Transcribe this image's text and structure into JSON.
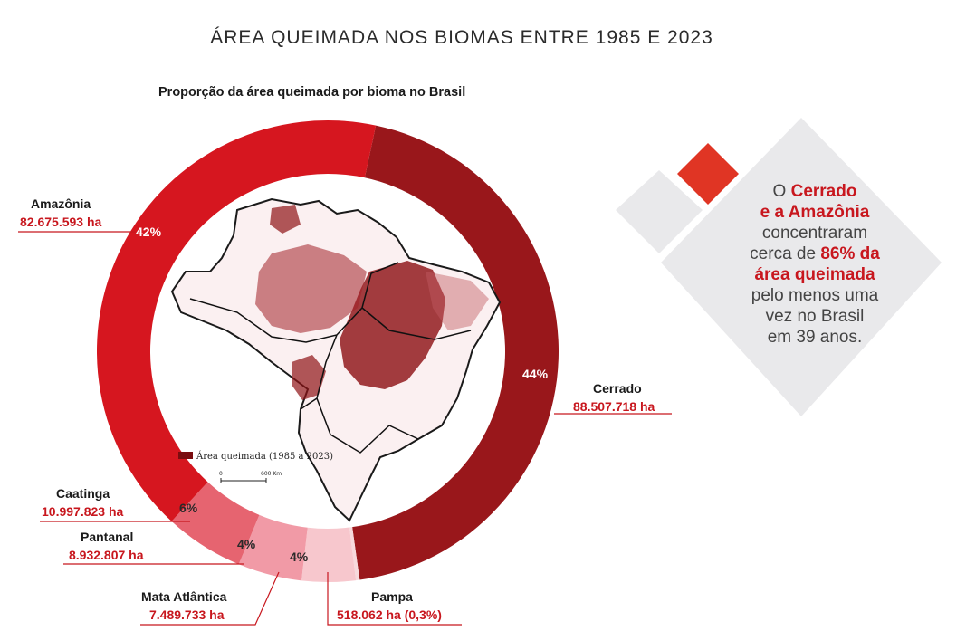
{
  "header": {
    "title": "ÁREA QUEIMADA NOS BIOMAS ENTRE 1985 E 2023",
    "subtitle": "Proporção da área queimada por bioma no Brasil"
  },
  "chart_data": {
    "type": "donut",
    "title": "Proporção da área queimada por bioma no Brasil",
    "slices": [
      {
        "name": "Cerrado",
        "value_label": "88.507.718 ha",
        "value": 88507718,
        "percent_label": "44%",
        "color": "#99171b"
      },
      {
        "name": "Pampa",
        "value_label": "518.062 ha (0,3%)",
        "value": 518062,
        "percent_label": "",
        "color": "#f7d9dc"
      },
      {
        "name": "Mata Atlântica",
        "value_label": "7.489.733 ha",
        "value": 7489733,
        "percent_label": "4%",
        "color": "#f7c7cd"
      },
      {
        "name": "Pantanal",
        "value_label": "8.932.807 ha",
        "value": 8932807,
        "percent_label": "4%",
        "color": "#f19aa6"
      },
      {
        "name": "Caatinga",
        "value_label": "10.997.823 ha",
        "value": 10997823,
        "percent_label": "6%",
        "color": "#e66470"
      },
      {
        "name": "Amazônia",
        "value_label": "82.675.593 ha",
        "value": 82675593,
        "percent_label": "42%",
        "color": "#d6161f"
      }
    ]
  },
  "map": {
    "legend_label": "Área queimada (1985 a 2023)",
    "legend_color": "#7a0c0f",
    "scale_start": "0",
    "scale_end": "600 Km"
  },
  "callout": {
    "t1": "O ",
    "h1": "Cerrado",
    "h2": "e a Amazônia",
    "t2": "concentraram",
    "t3": "cerca de ",
    "h3": "86% da",
    "h4": "área queimada",
    "t4": "pelo menos uma",
    "t5": "vez no Brasil",
    "t6": "em 39 anos.",
    "accent_color": "#e03524",
    "diamond_color": "#e9e9eb"
  }
}
